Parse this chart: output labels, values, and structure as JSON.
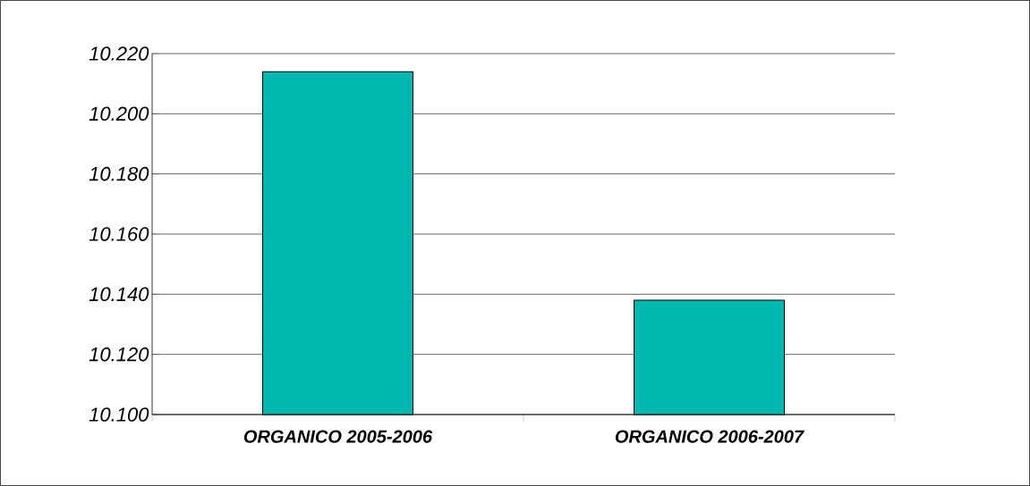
{
  "chart_data": {
    "type": "bar",
    "categories": [
      "ORGANICO 2005-2006",
      "ORGANICO 2006-2007"
    ],
    "values": [
      10214,
      10138
    ],
    "colors": [
      "#00b8b0",
      "#00b8b0"
    ],
    "ylim": [
      10100,
      10220
    ],
    "yticks": [
      {
        "value": 10100,
        "label": "10.100"
      },
      {
        "value": 10120,
        "label": "10.120"
      },
      {
        "value": 10140,
        "label": "10.140"
      },
      {
        "value": 10160,
        "label": "10.160"
      },
      {
        "value": 10180,
        "label": "10.180"
      },
      {
        "value": 10200,
        "label": "10.200"
      },
      {
        "value": 10220,
        "label": "10.220"
      }
    ],
    "grid": "y"
  }
}
